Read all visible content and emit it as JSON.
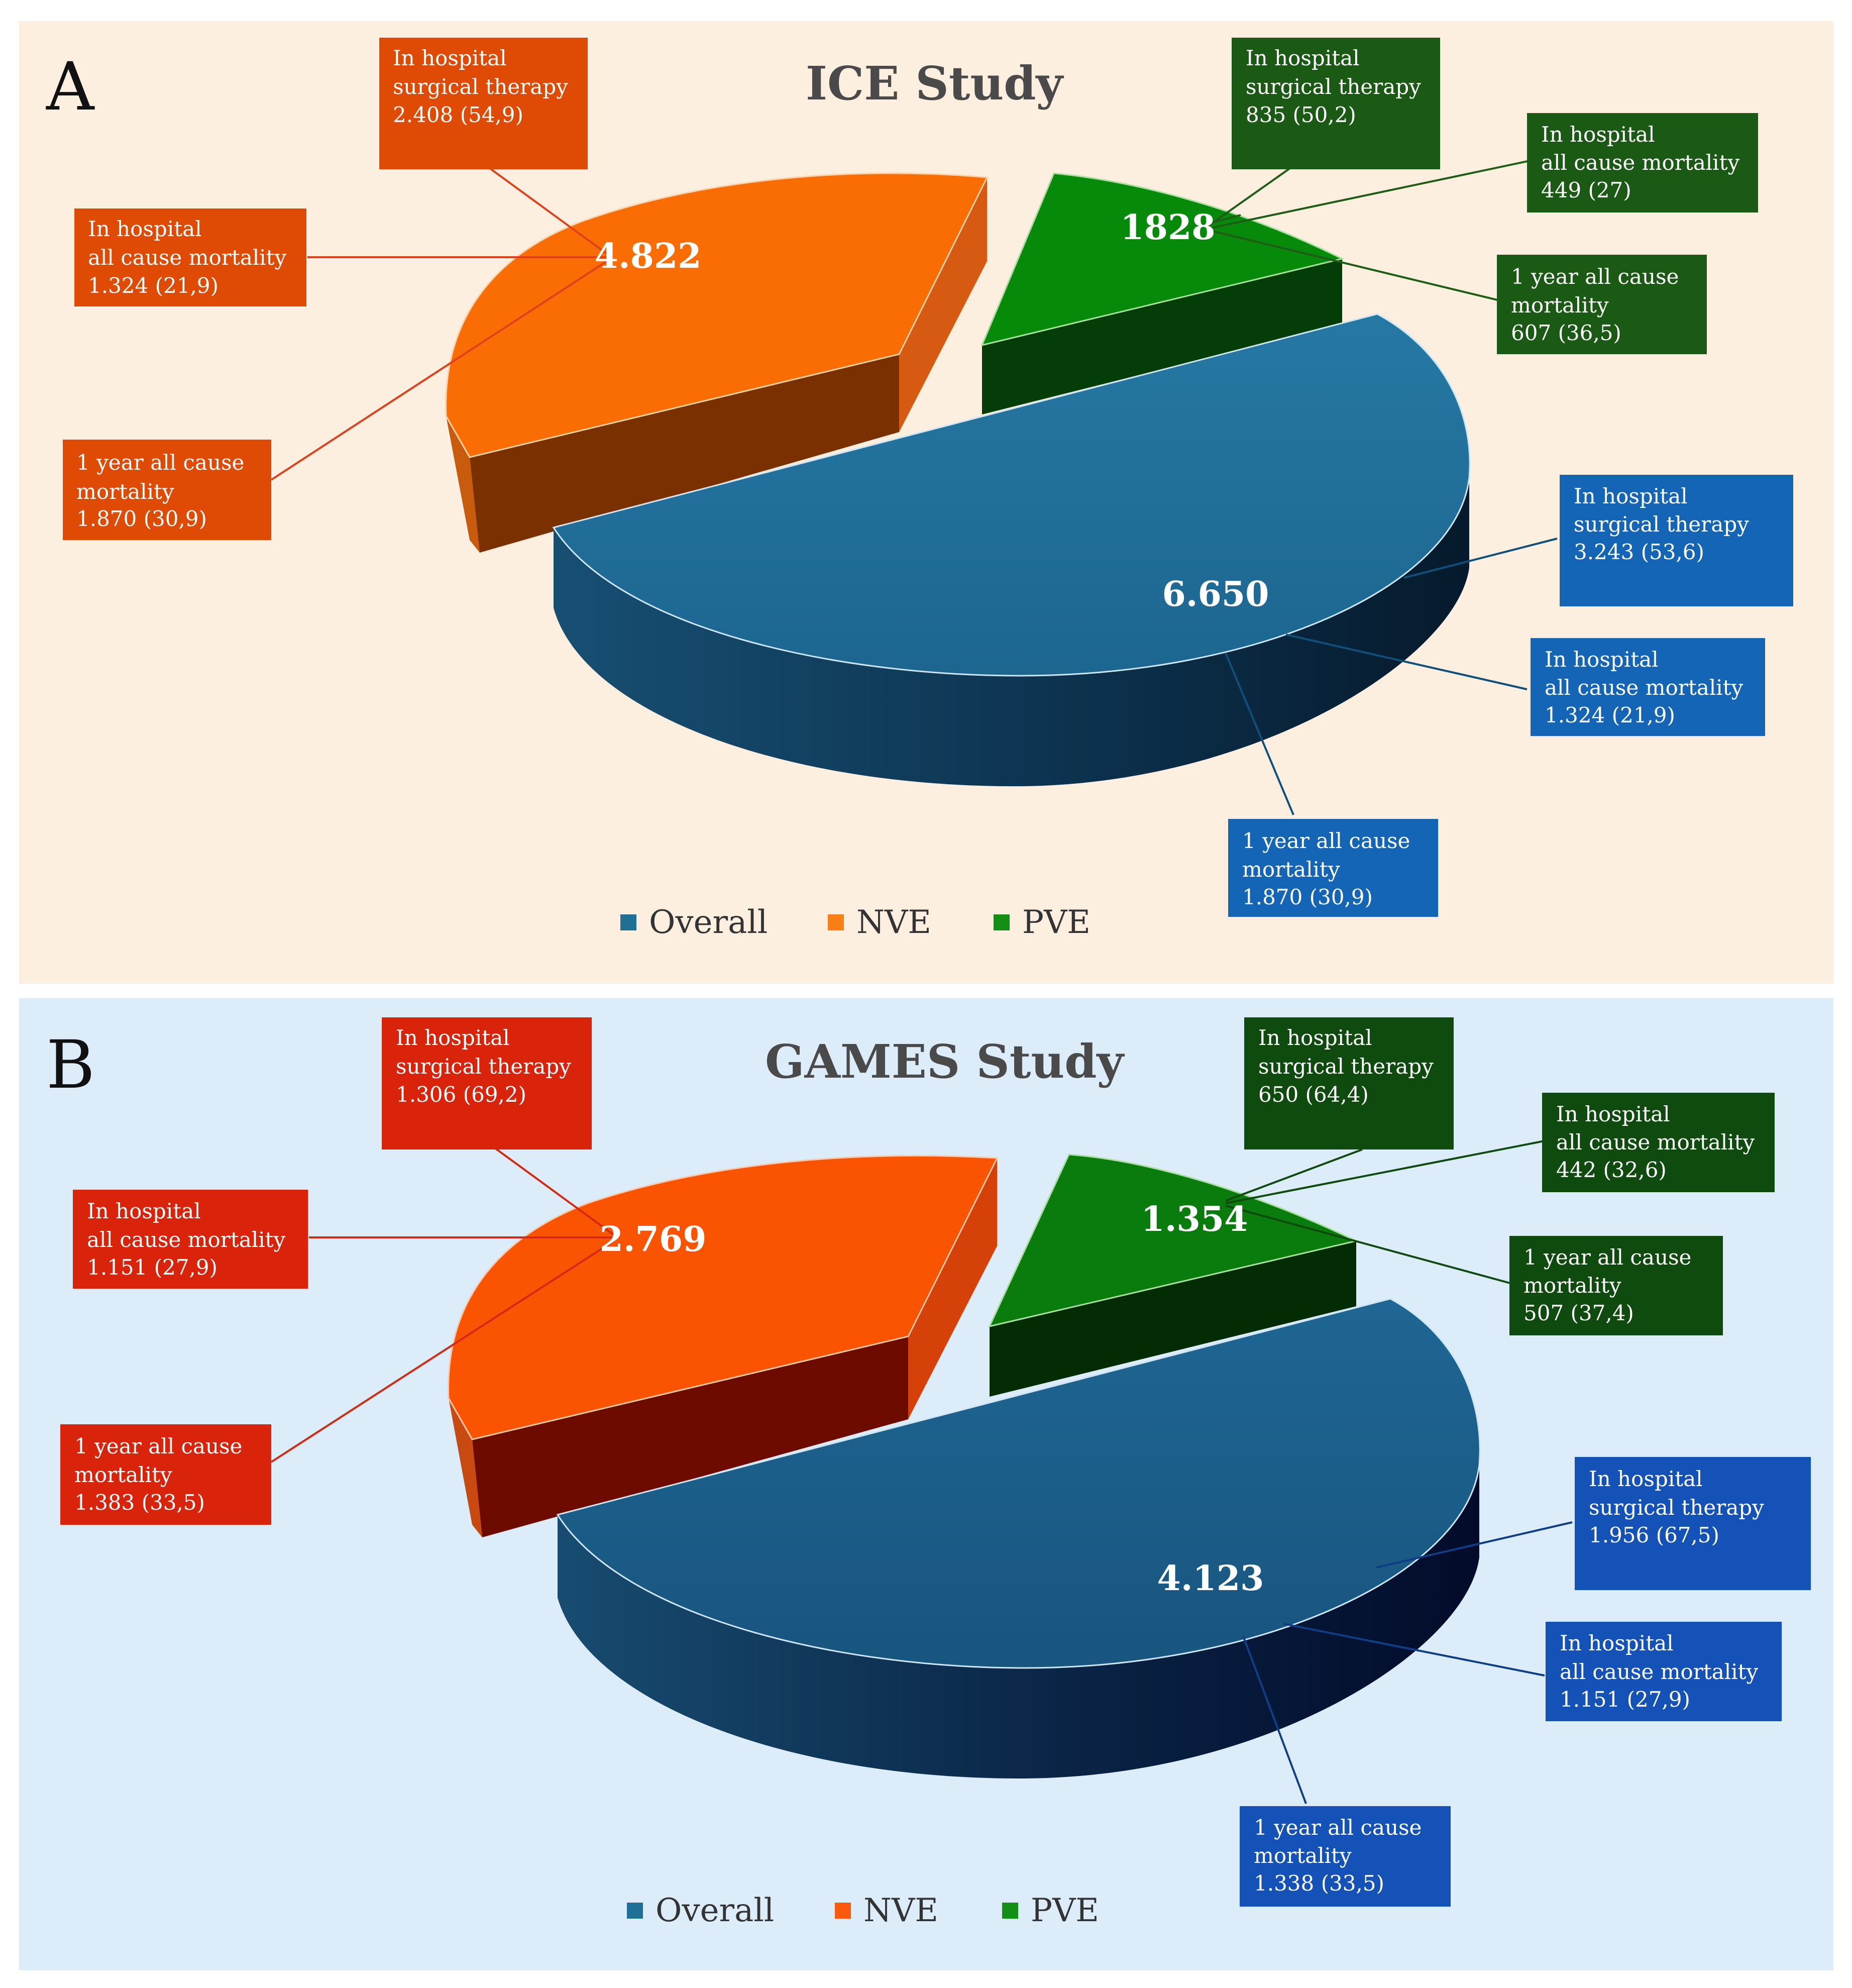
{
  "chart_data": [
    {
      "type": "pie",
      "panel_letter": "A",
      "title": "ICE Study",
      "background": "#fcefdf",
      "legend": [
        {
          "label": "Overall",
          "color": "#1f6f97"
        },
        {
          "label": "NVE",
          "color": "#f77f16"
        },
        {
          "label": "PVE",
          "color": "#138f16"
        }
      ],
      "slices": [
        {
          "name": "Overall",
          "value": 6650,
          "label": "6.650",
          "callouts": [
            {
              "lines": [
                "In hospital",
                "surgical therapy",
                "3.243 (53,6)"
              ]
            },
            {
              "lines": [
                "In hospital",
                "all cause mortality",
                "1.324 (21,9)"
              ]
            },
            {
              "lines": [
                "1 year all cause",
                "mortality",
                "1.870 (30,9)"
              ]
            }
          ]
        },
        {
          "name": "NVE",
          "value": 4822,
          "label": "4.822",
          "callouts": [
            {
              "lines": [
                "In hospital",
                "surgical therapy",
                "2.408 (54,9)"
              ]
            },
            {
              "lines": [
                "In hospital",
                "all cause mortality",
                "1.324 (21,9)"
              ]
            },
            {
              "lines": [
                "1 year all cause",
                "mortality",
                "1.870 (30,9)"
              ]
            }
          ]
        },
        {
          "name": "PVE",
          "value": 1828,
          "label": "1828",
          "callouts": [
            {
              "lines": [
                "In hospital",
                "surgical therapy",
                "835 (50,2)"
              ]
            },
            {
              "lines": [
                "In hospital",
                "all cause mortality",
                "449 (27)"
              ]
            },
            {
              "lines": [
                "1 year all cause",
                "mortality",
                "607 (36,5)"
              ]
            }
          ]
        }
      ]
    },
    {
      "type": "pie",
      "panel_letter": "B",
      "title": "GAMES Study",
      "background": "#dcecf9",
      "legend": [
        {
          "label": "Overall",
          "color": "#1f6f97"
        },
        {
          "label": "NVE",
          "color": "#fb5a0e"
        },
        {
          "label": "PVE",
          "color": "#138f16"
        }
      ],
      "slices": [
        {
          "name": "Overall",
          "value": 4123,
          "label": "4.123",
          "callouts": [
            {
              "lines": [
                "In hospital",
                "surgical therapy",
                "1.956 (67,5)"
              ]
            },
            {
              "lines": [
                "In hospital",
                "all cause mortality",
                "1.151 (27,9)"
              ]
            },
            {
              "lines": [
                "1 year all cause",
                "mortality",
                "1.338 (33,5)"
              ]
            }
          ]
        },
        {
          "name": "NVE",
          "value": 2769,
          "label": "2.769",
          "callouts": [
            {
              "lines": [
                "In hospital",
                "surgical therapy",
                "1.306 (69,2)"
              ]
            },
            {
              "lines": [
                "In hospital",
                "all cause mortality",
                "1.151 (27,9)"
              ]
            },
            {
              "lines": [
                "1 year all cause",
                "mortality",
                "1.383 (33,5)"
              ]
            }
          ]
        },
        {
          "name": "PVE",
          "value": 1354,
          "label": "1.354",
          "callouts": [
            {
              "lines": [
                "In hospital",
                "surgical therapy",
                "650 (64,4)"
              ]
            },
            {
              "lines": [
                "In hospital",
                "all cause mortality",
                "442 (32,6)"
              ]
            },
            {
              "lines": [
                "1 year all cause",
                "mortality",
                "507 (37,4)"
              ]
            }
          ]
        }
      ]
    }
  ]
}
